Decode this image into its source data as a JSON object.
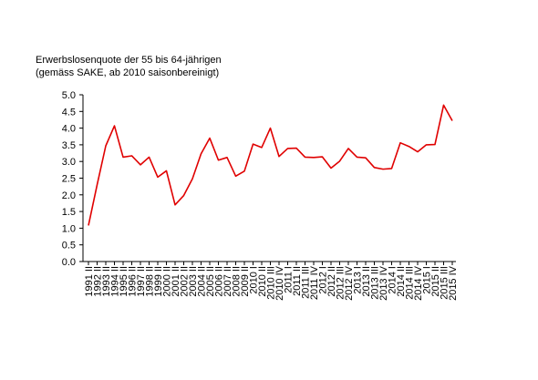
{
  "chart_data": {
    "type": "line",
    "title": "Erwerbslosenquote der 55 bis 64-jährigen",
    "subtitle": "(gemäss SAKE, ab 2010 saisonbereinigt)",
    "xlabel": "",
    "ylabel": "",
    "ylim": [
      0,
      5
    ],
    "yticks": [
      "0.0",
      "0.5",
      "1.0",
      "1.5",
      "2.0",
      "2.5",
      "3.0",
      "3.5",
      "4.0",
      "4.5",
      "5.0"
    ],
    "grid": false,
    "legend": "none",
    "line_color": "#e00000",
    "categories": [
      "1991 II",
      "1992 II",
      "1993 II",
      "1994 II",
      "1995 II",
      "1996 II",
      "1997 II",
      "1998 II",
      "1999 II",
      "2000 II",
      "2001 II",
      "2002 II",
      "2003 II",
      "2004 II",
      "2005 II",
      "2006 II",
      "2007 II",
      "2008 II",
      "2009 II",
      "2010 I",
      "2010 II",
      "2010 III",
      "2010 IV",
      "2011 I",
      "2011 II",
      "2011 III",
      "2011 IV",
      "2012 I",
      "2012 II",
      "2012 III",
      "2012 IV",
      "2013 I",
      "2013 II",
      "2013 III",
      "2013 IV",
      "2014 I",
      "2014 II",
      "2014 III",
      "2014 IV",
      "2015 I",
      "2015 II",
      "2015 III",
      "2015 IV"
    ],
    "values": [
      1.08,
      2.3,
      3.47,
      4.07,
      3.13,
      3.17,
      2.9,
      3.13,
      2.53,
      2.72,
      1.7,
      1.98,
      2.48,
      3.23,
      3.7,
      3.04,
      3.12,
      2.56,
      2.71,
      3.52,
      3.42,
      4.0,
      3.15,
      3.39,
      3.4,
      3.13,
      3.12,
      3.14,
      2.8,
      3.01,
      3.39,
      3.13,
      3.11,
      2.82,
      2.77,
      2.79,
      3.56,
      3.45,
      3.29,
      3.5,
      3.51,
      4.69,
      4.22
    ]
  }
}
